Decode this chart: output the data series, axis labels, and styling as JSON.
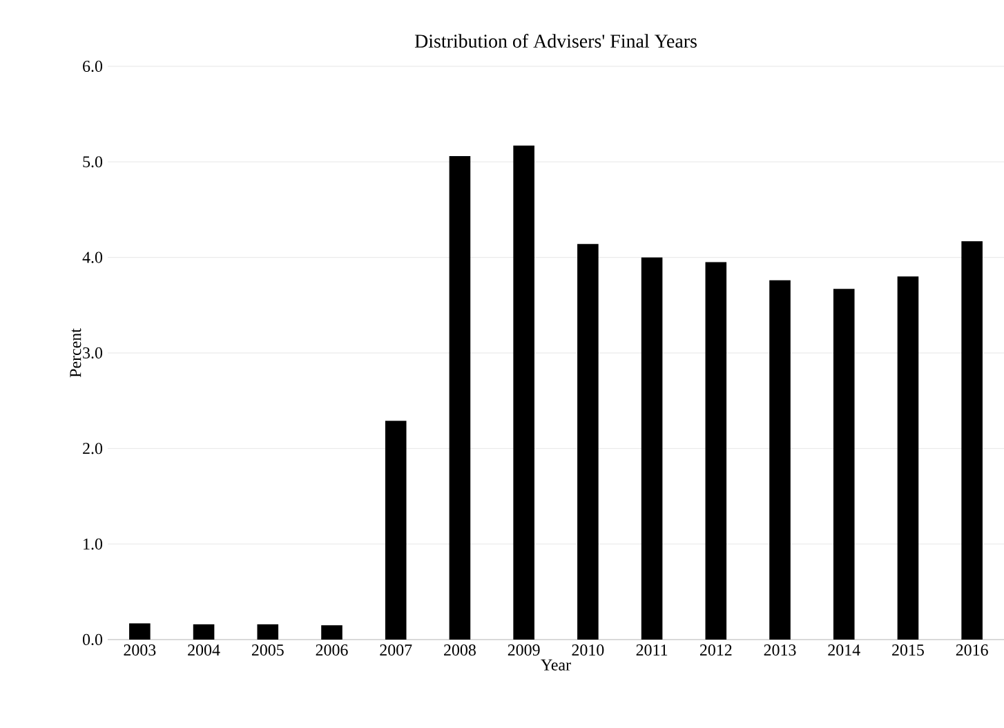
{
  "chart_data": {
    "type": "bar",
    "title": "Distribution of Advisers' Final Years",
    "xlabel": "Year",
    "ylabel": "Percent",
    "categories": [
      "2003",
      "2004",
      "2005",
      "2006",
      "2007",
      "2008",
      "2009",
      "2010",
      "2011",
      "2012",
      "2013",
      "2014",
      "2015",
      "2016"
    ],
    "values": [
      0.17,
      0.16,
      0.16,
      0.15,
      2.29,
      5.06,
      5.17,
      4.14,
      4.0,
      3.95,
      3.76,
      3.67,
      3.8,
      4.17
    ],
    "color": "#000000",
    "ylim": [
      0,
      6
    ],
    "yticks": [
      {
        "value": 0,
        "label": "0.0"
      },
      {
        "value": 1,
        "label": "1.0"
      },
      {
        "value": 2,
        "label": "2.0"
      },
      {
        "value": 3,
        "label": "3.0"
      },
      {
        "value": 4,
        "label": "4.0"
      },
      {
        "value": 5,
        "label": "5.0"
      },
      {
        "value": 6,
        "label": "6.0"
      }
    ],
    "grid": "y"
  }
}
